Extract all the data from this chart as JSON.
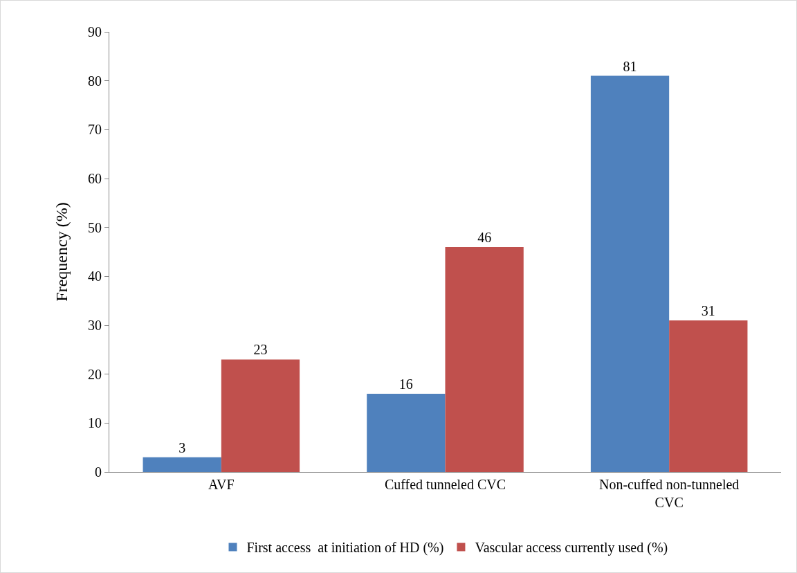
{
  "chart_data": {
    "type": "bar",
    "ylabel": "Frequency (%)",
    "categories": [
      "AVF",
      "Cuffed tunneled CVC",
      "Non-cuffed non-tunneled CVC"
    ],
    "series": [
      {
        "name": "First access  at initiation of HD (%)",
        "color": "#4f81bd",
        "values": [
          3,
          16,
          81
        ]
      },
      {
        "name": "Vascular access currently used (%)",
        "color": "#c0504d",
        "values": [
          23,
          46,
          31
        ]
      }
    ],
    "ylim": [
      0,
      90
    ],
    "yticks": [
      0,
      10,
      20,
      30,
      40,
      50,
      60,
      70,
      80,
      90
    ],
    "data_labels": true,
    "grid": false,
    "legend": "bottom"
  }
}
